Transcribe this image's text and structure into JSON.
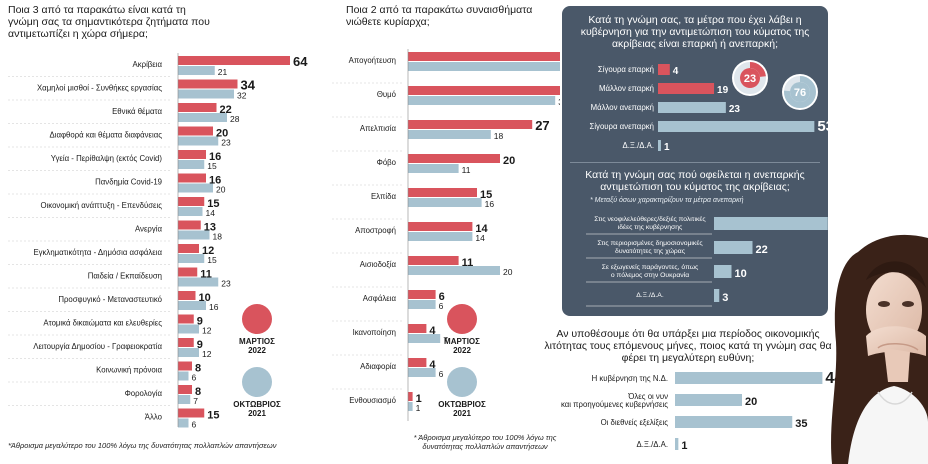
{
  "colors": {
    "march": "#d9545d",
    "october": "#a7c2d0",
    "panel": "#4a5869",
    "ink": "#1a1a1a"
  },
  "chart_data": [
    {
      "type": "bar",
      "title": "Ποια 3 από τα παρακάτω είναι κατά τη γνώμη σας τα σημαντικότερα ζητήματα που αντιμετωπίζει η χώρα σήμερα;",
      "categories": [
        "Ακρίβεια",
        "Χαμηλοί μισθοί - Συνθήκες εργασίας",
        "Εθνικά θέματα",
        "Διαφθορά και θέματα διαφάνειας",
        "Υγεία - Περίθαλψη (εκτός Covid)",
        "Πανδημία Covid-19",
        "Οικονομική ανάπτυξη - Επενδύσεις",
        "Ανεργία",
        "Εγκληματικότητα - Δημόσια ασφάλεια",
        "Παιδεία / Εκπαίδευση",
        "Προσφυγικό - Μεταναστευτικό",
        "Ατομικά δικαιώματα και ελευθερίες",
        "Λειτουργία Δημοσίου - Γραφειοκρατία",
        "Κοινωνική πρόνοια",
        "Φορολογία",
        "Άλλο"
      ],
      "series": [
        {
          "name": "ΜΑΡΤΙΟΣ 2022",
          "values": [
            64,
            34,
            22,
            20,
            16,
            16,
            15,
            13,
            12,
            11,
            10,
            9,
            9,
            8,
            8,
            15
          ]
        },
        {
          "name": "ΟΚΤΩΒΡΙΟΣ 2021",
          "values": [
            21,
            32,
            28,
            23,
            15,
            20,
            14,
            18,
            15,
            23,
            16,
            12,
            12,
            6,
            7,
            6
          ]
        }
      ],
      "note": "*Άθροισμα μεγαλύτερο του 100% λόγω της δυνατότητας πολλαπλών απαντήσεων"
    },
    {
      "type": "bar",
      "title": "Ποια 2 από τα παρακάτω συναισθήματα νιώθετε κυρίαρχα;",
      "categories": [
        "Απογοήτευση",
        "Θυμό",
        "Απελπισία",
        "Φόβο",
        "Ελπίδα",
        "Αποστροφή",
        "Αισιοδοξία",
        "Ασφάλεια",
        "Ικανοποίηση",
        "Αδιαφορία",
        "Ενθουσιασμό"
      ],
      "series": [
        {
          "name": "ΜΑΡΤΙΟΣ 2022",
          "values": [
            43,
            34,
            27,
            20,
            15,
            14,
            11,
            6,
            4,
            4,
            1
          ]
        },
        {
          "name": "ΟΚΤΩΒΡΙΟΣ 2021",
          "values": [
            37,
            32,
            18,
            11,
            16,
            14,
            20,
            6,
            7,
            6,
            1
          ]
        }
      ],
      "note": "* Άθροισμα μεγαλύτερο του 100% λόγω της δυνατότητας πολλαπλών απαντήσεων"
    },
    {
      "type": "bar",
      "title": "Κατά τη γνώμη σας, τα μέτρα που έχει λάβει η κυβέρνηση για την αντιμετώπιση του κύματος της ακρίβειας είναι επαρκή ή ανεπαρκή;",
      "categories": [
        "Σίγουρα επαρκή",
        "Μάλλον επαρκή",
        "Μάλλον ανεπαρκή",
        "Σίγουρα ανεπαρκή",
        "Δ.Ξ./Δ.Α."
      ],
      "values": [
        4,
        19,
        23,
        53,
        1
      ],
      "donuts": [
        {
          "value": 23,
          "color": "#d9545d"
        },
        {
          "value": 76,
          "color": "#a7c2d0"
        }
      ]
    },
    {
      "type": "bar",
      "title": "Κατά τη γνώμη σας πού οφείλεται η ανεπαρκής αντιμετώπιση του κύματος της ακρίβειας;",
      "note": "* Μεταξύ όσων χαρακτηρίζουν τα μέτρα ανεπαρκή",
      "categories": [
        "Στις νεοφιλελεύθερες/δεξιές πολιτικές ιδέες της κυβέρνησης",
        "Στις περιορισμένες δημοσιονομικές δυνατότητες της χώρας",
        "Σε εξωγενείς παράγοντες, όπως ο πόλεμος στην Ουκρανία",
        "Δ.Ξ./Δ.Α."
      ],
      "values": [
        65,
        22,
        10,
        3
      ]
    },
    {
      "type": "bar",
      "title": "Αν υποθέσουμε ότι θα υπάρξει μια περίοδος οικονομικής λιτότητας τους επόμενους μήνες, ποιος κατά τη γνώμη σας θα φέρει τη μεγαλύτερη ευθύνη;",
      "categories": [
        "Η κυβέρνηση της Ν.Δ.",
        "Όλες οι νυν και προηγούμενες κυβερνήσεις",
        "Οι διεθνείς εξελίξεις",
        "Δ.Ξ./Δ.Α."
      ],
      "values": [
        44,
        20,
        35,
        1
      ]
    }
  ],
  "legend": {
    "march_label": "ΜΑΡΤΙΟΣ",
    "march_year": "2022",
    "october_label": "ΟΚΤΩΒΡΙΟΣ",
    "october_year": "2021"
  }
}
